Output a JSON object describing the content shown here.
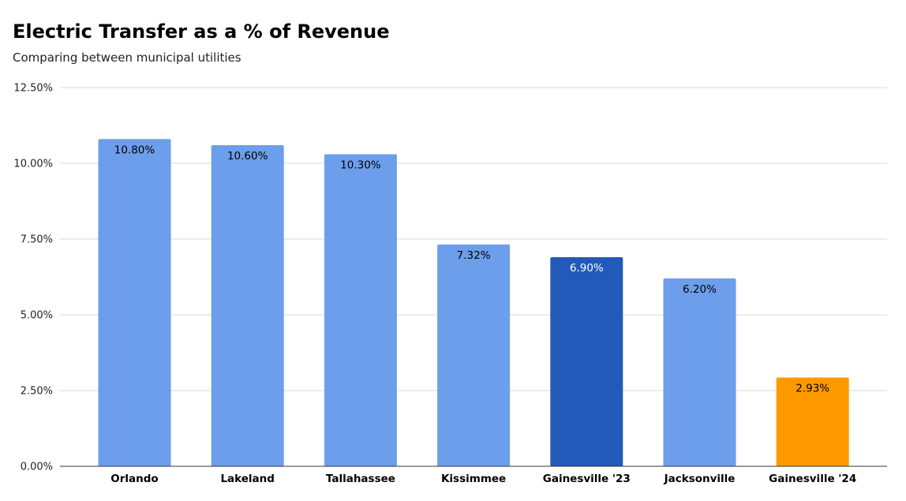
{
  "chart_data": {
    "type": "bar",
    "title": "Electric Transfer as a % of Revenue",
    "subtitle": "Comparing between municipal utilities",
    "categories": [
      "Orlando",
      "Lakeland",
      "Tallahassee",
      "Kissimmee",
      "Gainesville '23",
      "Jacksonville",
      "Gainesville '24"
    ],
    "values": [
      10.8,
      10.6,
      10.3,
      7.32,
      6.9,
      6.2,
      2.93
    ],
    "value_labels": [
      "10.80%",
      "10.60%",
      "10.30%",
      "7.32%",
      "6.90%",
      "6.20%",
      "2.93%"
    ],
    "bar_colors": [
      "#6d9eeb",
      "#6d9eeb",
      "#6d9eeb",
      "#6d9eeb",
      "#2359b8",
      "#6d9eeb",
      "#ff9900"
    ],
    "label_colors": [
      "#000000",
      "#000000",
      "#000000",
      "#000000",
      "#ffffff",
      "#000000",
      "#000000"
    ],
    "ylim": [
      0,
      12.5
    ],
    "yticks": [
      0,
      2.5,
      5,
      7.5,
      10,
      12.5
    ],
    "ytick_labels": [
      "0.00%",
      "2.50%",
      "5.00%",
      "7.50%",
      "10.00%",
      "12.50%"
    ],
    "xlabel": "",
    "ylabel": "",
    "grid": true,
    "legend": "none"
  }
}
